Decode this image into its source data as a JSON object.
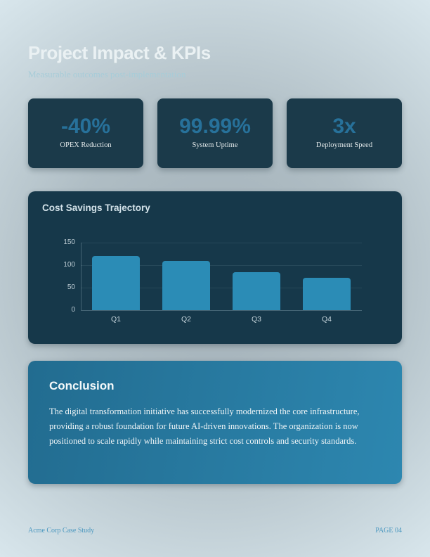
{
  "page": {
    "title": "Project Impact & KPIs",
    "subtitle": "Measurable outcomes post-implementation"
  },
  "kpis": [
    {
      "value": "-40%",
      "label": "OPEX Reduction"
    },
    {
      "value": "99.99%",
      "label": "System Uptime"
    },
    {
      "value": "3x",
      "label": "Deployment Speed"
    }
  ],
  "chart_data": {
    "type": "bar",
    "title": "Cost Savings Trajectory",
    "categories": [
      "Q1",
      "Q2",
      "Q3",
      "Q4"
    ],
    "values": [
      120,
      110,
      85,
      72
    ],
    "xlabel": "",
    "ylabel": "",
    "ylim": [
      0,
      150
    ],
    "yticks": [
      0,
      50,
      100,
      150
    ],
    "grid": true,
    "legend": false,
    "bar_color": "#2b8cb6"
  },
  "conclusion": {
    "title": "Conclusion",
    "body": "The digital transformation initiative has successfully modernized the core infrastructure, providing a robust foundation for future AI-driven innovations. The organization is now positioned to scale rapidly while maintaining strict cost controls and security standards."
  },
  "footer": {
    "left": "Acme Corp Case Study",
    "right": "PAGE 04"
  },
  "colors": {
    "accent_bar": "#2b8cb6",
    "kpi_number": "#27719a",
    "kpi_card_bg": "#1b3a4a",
    "chart_card_bg": "#16384a",
    "conclusion_gradient_start": "#226c90",
    "conclusion_gradient_end": "#2d87b0",
    "footer_text": "#4a97bf"
  }
}
